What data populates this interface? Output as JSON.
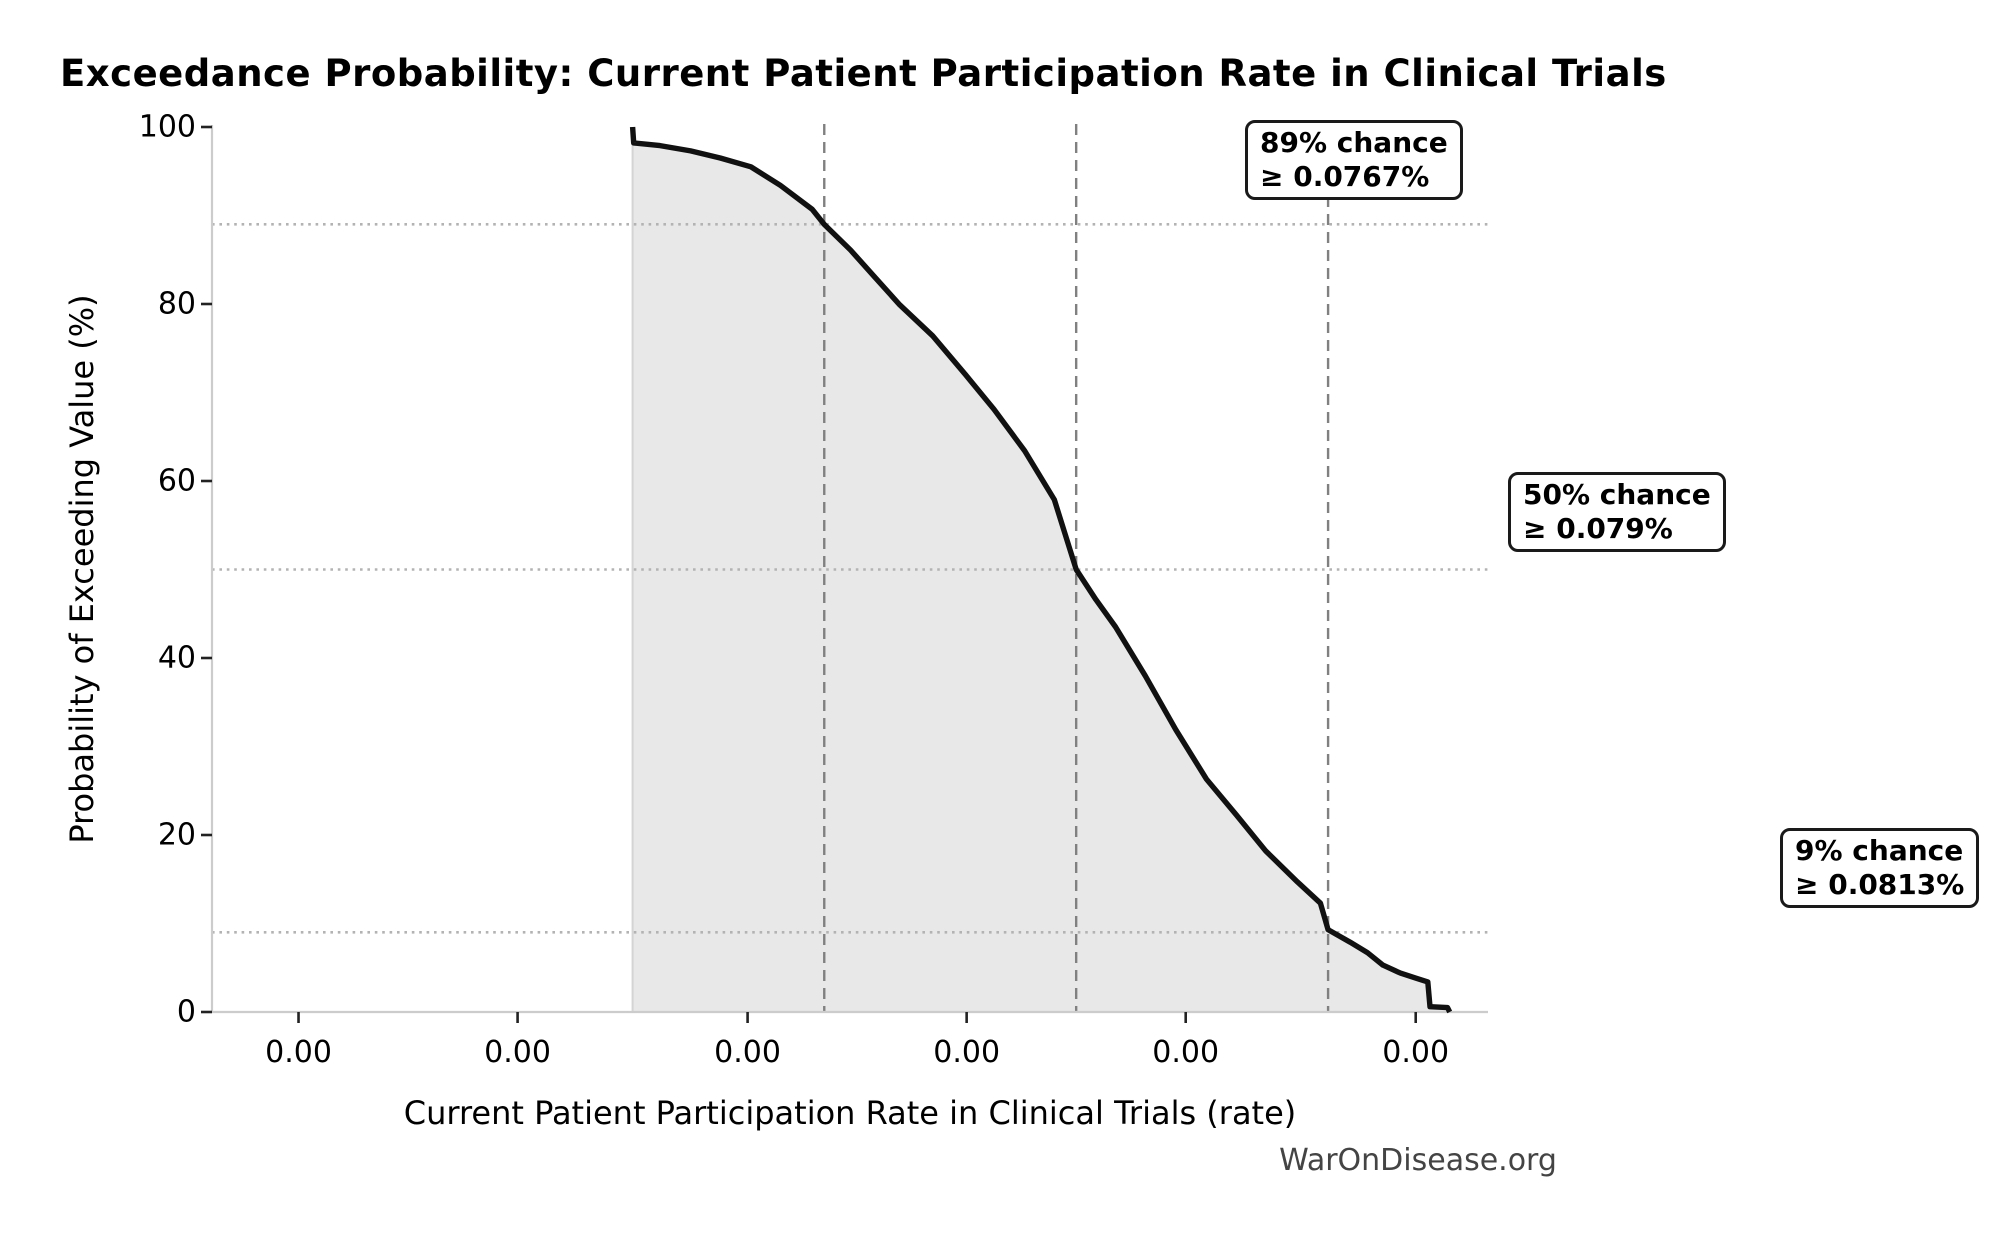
{
  "watermark": "WarOnDisease.org",
  "chart_data": {
    "type": "area",
    "title": "Exceedance Probability: Current Patient Participation Rate in Clinical Trials",
    "xlabel": "Current Patient Participation Rate in Clinical Trials (rate)",
    "ylabel": "Probability of Exceeding Value (%)",
    "legend": "none",
    "grid": "reference lines only",
    "x_axis": {
      "unit": "rate",
      "min": 0.07111,
      "max": 0.08276,
      "tick_values": [
        0.0719,
        0.0739,
        0.076,
        0.078,
        0.08,
        0.0821
      ],
      "tick_labels": [
        "0.00",
        "0.00",
        "0.00",
        "0.00",
        "0.00",
        "0.00"
      ]
    },
    "y_axis": {
      "unit": "%",
      "min": 0,
      "max": 100,
      "tick_values": [
        0,
        20,
        40,
        60,
        80,
        100
      ],
      "tick_labels": [
        "0",
        "20",
        "40",
        "60",
        "80",
        "100"
      ]
    },
    "series": [
      {
        "name": "exceedance-probability-curve",
        "points_rate_pct_vs_prob_pct": [
          [
            0.07495,
            100.0
          ],
          [
            0.07496,
            98.2
          ],
          [
            0.0752,
            97.9
          ],
          [
            0.07548,
            97.3
          ],
          [
            0.07575,
            96.5
          ],
          [
            0.07603,
            95.5
          ],
          [
            0.0763,
            93.4
          ],
          [
            0.07659,
            90.7
          ],
          [
            0.0767,
            89.0
          ],
          [
            0.07694,
            86.1
          ],
          [
            0.07715,
            83.2
          ],
          [
            0.07739,
            79.9
          ],
          [
            0.07769,
            76.4
          ],
          [
            0.07799,
            72.0
          ],
          [
            0.07825,
            68.1
          ],
          [
            0.07853,
            63.4
          ],
          [
            0.0788,
            57.9
          ],
          [
            0.079,
            50.0
          ],
          [
            0.07918,
            46.6
          ],
          [
            0.07936,
            43.5
          ],
          [
            0.07963,
            38.0
          ],
          [
            0.07991,
            31.9
          ],
          [
            0.08019,
            26.3
          ],
          [
            0.08046,
            22.3
          ],
          [
            0.08073,
            18.2
          ],
          [
            0.08102,
            14.7
          ],
          [
            0.08123,
            12.3
          ],
          [
            0.0813,
            9.3
          ],
          [
            0.0815,
            7.9
          ],
          [
            0.08166,
            6.7
          ],
          [
            0.0818,
            5.3
          ],
          [
            0.08196,
            4.4
          ],
          [
            0.08211,
            3.8
          ],
          [
            0.08221,
            3.4
          ],
          [
            0.08223,
            0.6
          ],
          [
            0.08239,
            0.5
          ],
          [
            0.08241,
            0.0
          ]
        ]
      }
    ],
    "reference_lines": {
      "vertical_dashed_rate_values": [
        0.0767,
        0.079,
        0.0813
      ],
      "horizontal_dotted_prob_values": [
        89,
        50,
        9
      ]
    },
    "annotations": [
      {
        "line1": "89% chance",
        "line2": "≥ 0.0767%",
        "prob_pct": 89,
        "rate_pct": 0.0767
      },
      {
        "line1": "50% chance",
        "line2": "≥ 0.079%",
        "prob_pct": 50,
        "rate_pct": 0.079
      },
      {
        "line1": "9% chance",
        "line2": "≥ 0.0813%",
        "prob_pct": 9,
        "rate_pct": 0.0813
      }
    ],
    "colors": {
      "curve": "#111111",
      "area_fill": "#e8e8e8",
      "area_edge": "#d4d4d4",
      "dashed_line": "#808080",
      "dotted_line": "#b3b3b3",
      "spine": "#cccccc",
      "tick_mark": "#222222",
      "annotation_border": "#1a1a1a",
      "watermark": "#444444"
    }
  }
}
